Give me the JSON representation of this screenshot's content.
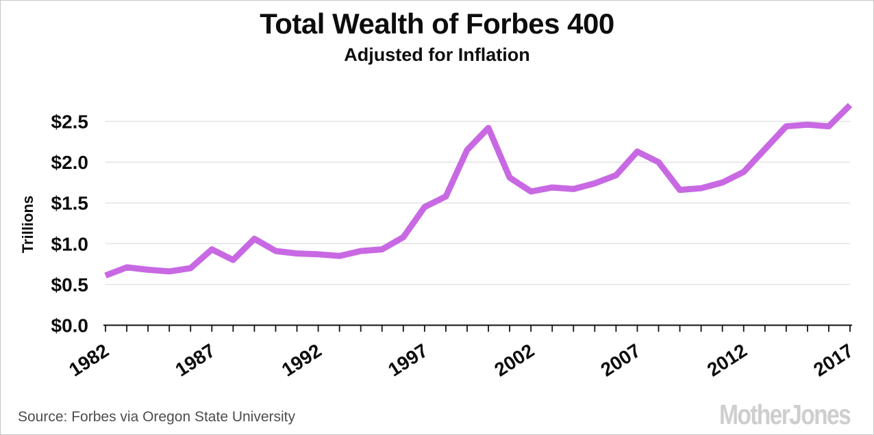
{
  "chart_data": {
    "type": "line",
    "title": "Total Wealth of Forbes 400",
    "subtitle": "Adjusted for Inflation",
    "ylabel": "Trillions",
    "xlabel": "",
    "series_name": "Forbes 400 total wealth (trillions of dollars, inflation-adjusted)",
    "x": [
      1982,
      1983,
      1984,
      1985,
      1986,
      1987,
      1988,
      1989,
      1990,
      1991,
      1992,
      1993,
      1994,
      1995,
      1996,
      1997,
      1998,
      1999,
      2000,
      2001,
      2002,
      2003,
      2004,
      2005,
      2006,
      2007,
      2008,
      2009,
      2010,
      2011,
      2012,
      2013,
      2014,
      2015,
      2016,
      2017
    ],
    "values": [
      0.61,
      0.71,
      0.68,
      0.66,
      0.7,
      0.93,
      0.8,
      1.06,
      0.91,
      0.88,
      0.87,
      0.85,
      0.91,
      0.93,
      1.08,
      1.45,
      1.58,
      2.15,
      2.42,
      1.81,
      1.64,
      1.69,
      1.67,
      1.74,
      1.84,
      2.13,
      2.0,
      1.66,
      1.68,
      1.75,
      1.88,
      2.16,
      2.44,
      2.46,
      2.44,
      2.7
    ],
    "xlim": [
      1982,
      2017
    ],
    "ylim": [
      0,
      2.75
    ],
    "y_ticks": [
      0,
      0.5,
      1.0,
      1.5,
      2.0,
      2.5
    ],
    "y_tick_labels": [
      "$0.0",
      "$0.5",
      "$1.0",
      "$1.5",
      "$2.0",
      "$2.5"
    ],
    "x_tick_labels": [
      "1982",
      "1987",
      "1992",
      "1997",
      "2002",
      "2007",
      "2012",
      "2017"
    ],
    "x_minor_ticks_every_year": true,
    "grid": "horizontal",
    "legend": "none",
    "line_color": "#c869e3",
    "line_width": 9,
    "grid_color": "#e3e3e3",
    "axis_color": "#111111",
    "tick_label_color": "#0d0d0d"
  },
  "footer": {
    "source": "Source: Forbes via Oregon State University",
    "logo": "MotherJones"
  }
}
